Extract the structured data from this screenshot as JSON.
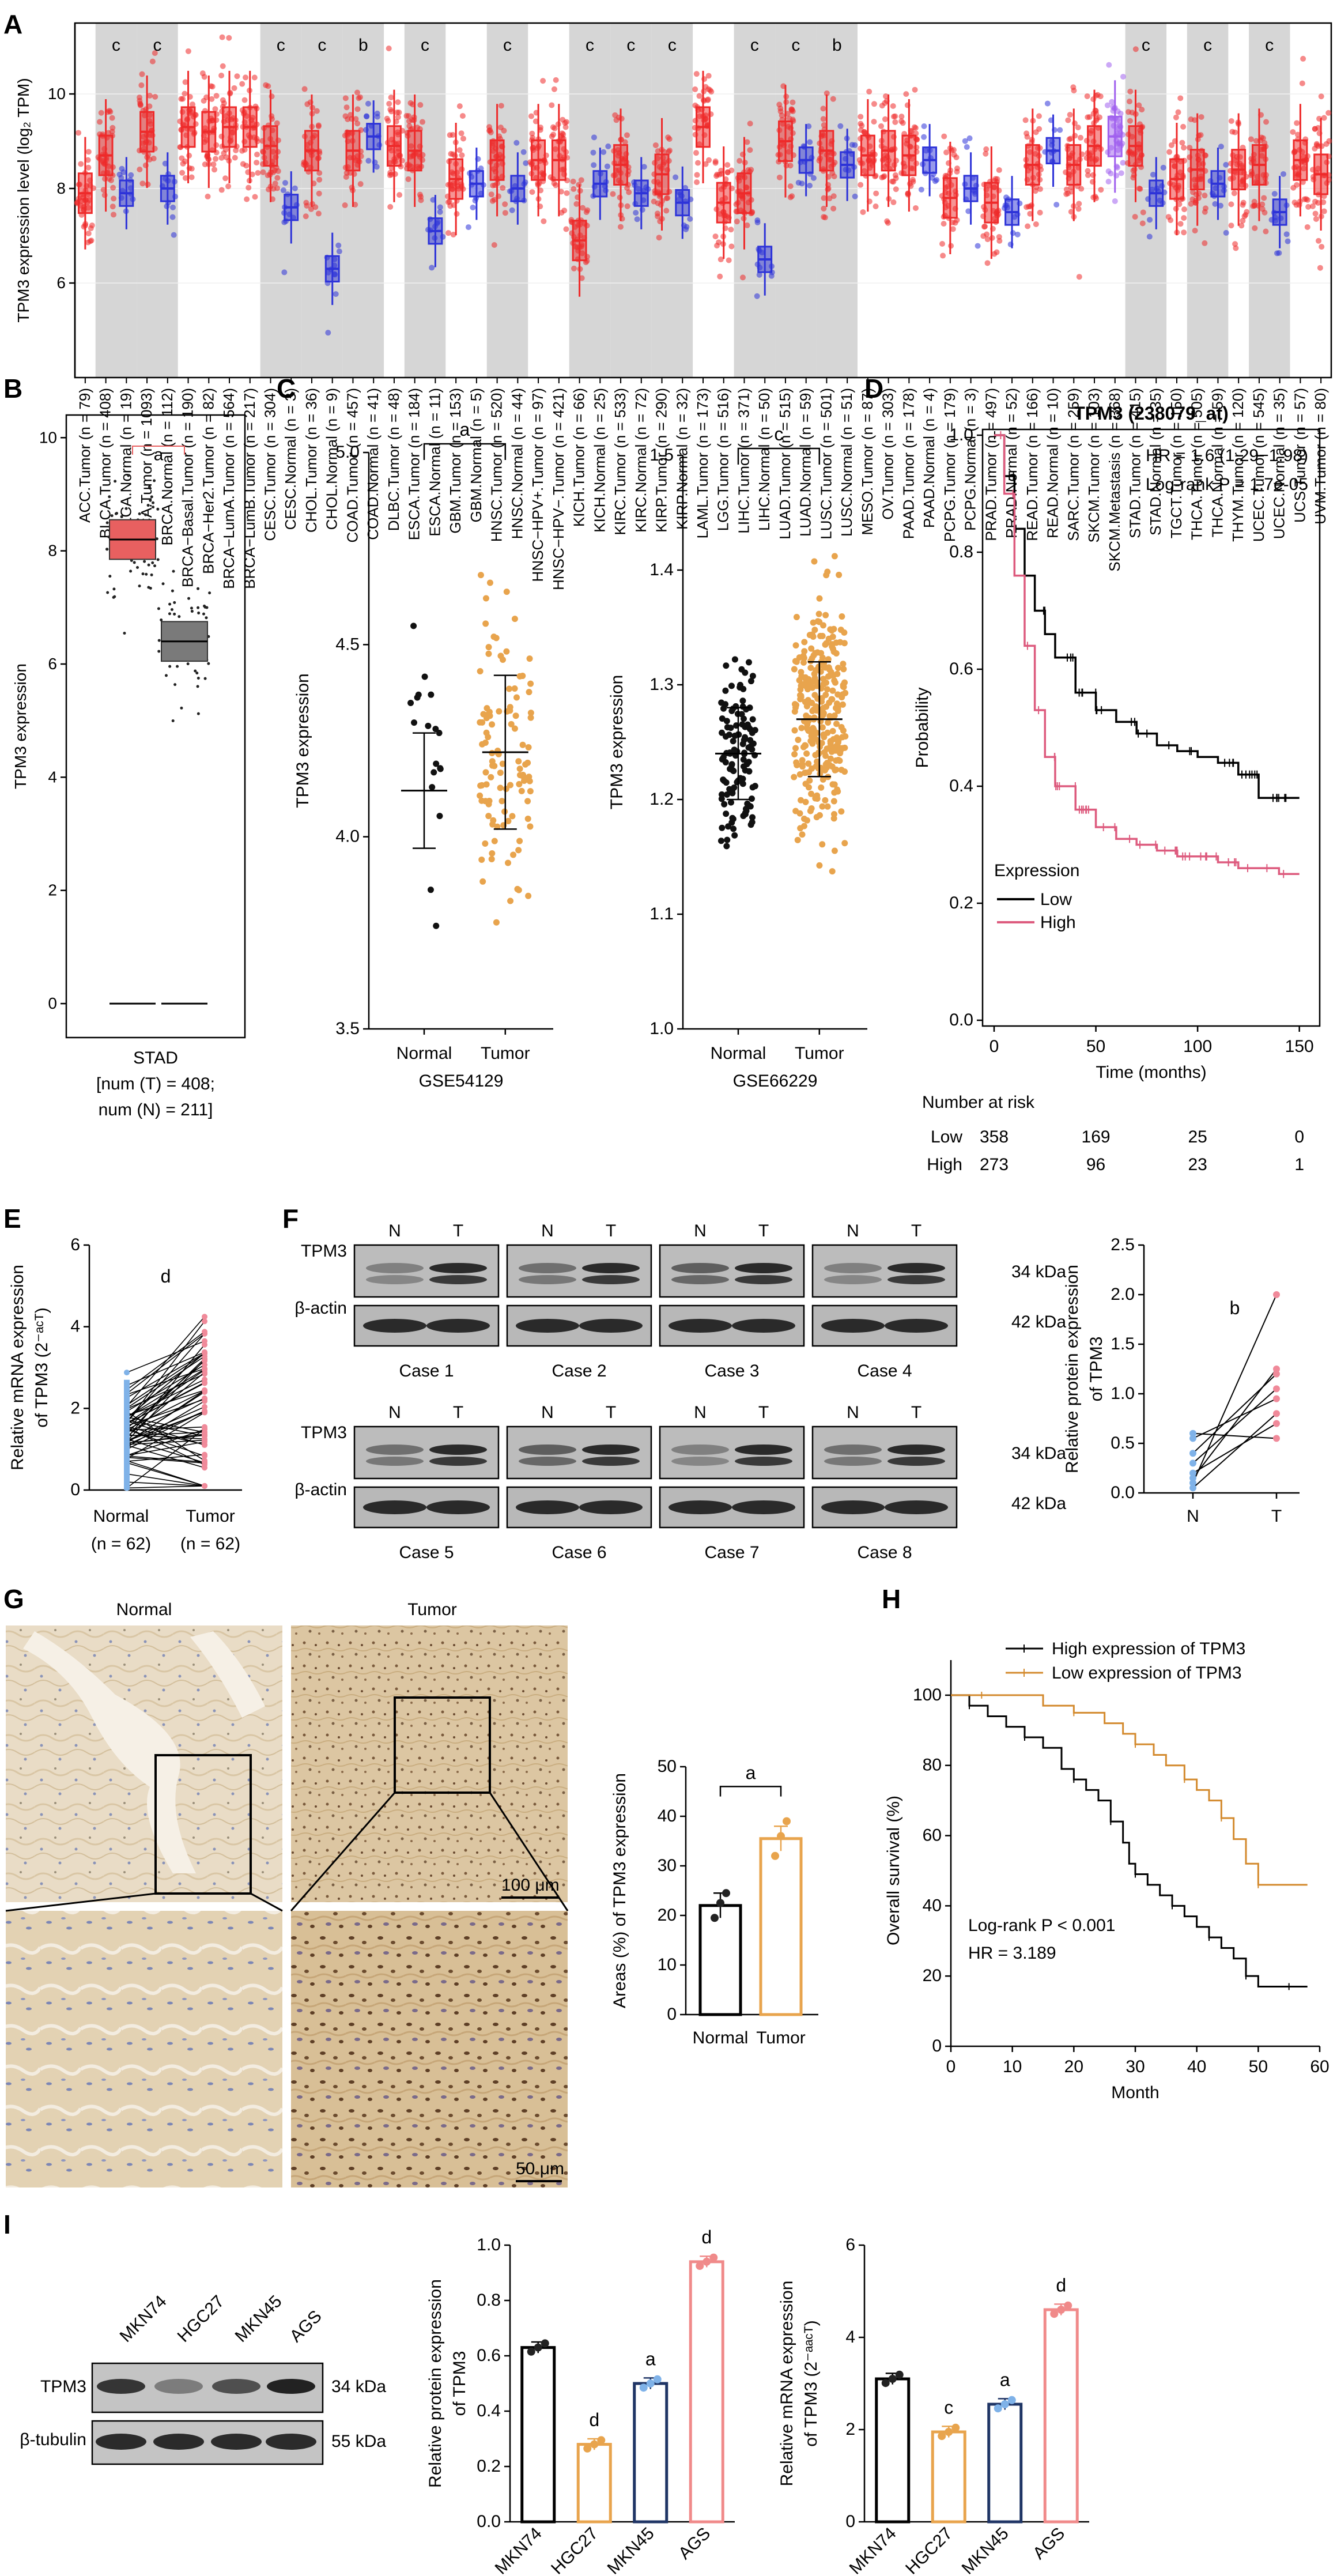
{
  "colors": {
    "tumor": "#ee2a2a",
    "normal": "#2d33d8",
    "metastasis": "#a060ee",
    "orange": "#e8a44d",
    "pink": "#dd5b7e",
    "lightblue": "#7fb2e8",
    "navy": "#233a6b",
    "gray": "#d6d6d6"
  },
  "chart_data": [
    {
      "panel": "A",
      "type": "box",
      "ylabel": "TPM3 expression level (log₂ TPM)",
      "yticks": [
        6,
        8,
        10
      ],
      "categories": [
        "ACC.Tumor (n = 79)",
        "BLCA.Tumor (n = 408)",
        "BLCA.Normal (n = 19)",
        "BRCA.Tumor (n = 1093)",
        "BRCA.Normal (n = 112)",
        "BRCA−Basal.Tumor (n = 190)",
        "BRCA−Her2.Tumor (n = 82)",
        "BRCA−LumA.Tumor (n = 564)",
        "BRCA−LumB.Tumor (n = 217)",
        "CESC.Tumor (n = 304)",
        "CESC.Normal (n = 3)",
        "CHOL.Tumor (n = 36)",
        "CHOL.Normal (n = 9)",
        "COAD.Tumor (n = 457)",
        "COAD.Normal (n = 41)",
        "DLBC.Tumor (n = 48)",
        "ESCA.Tumor (n = 184)",
        "ESCA.Normal (n = 11)",
        "GBM.Tumor (n = 153)",
        "GBM.Normal (n = 5)",
        "HNSC.Tumor (n = 520)",
        "HNSC.Normal (n = 44)",
        "HNSC−HPV+.Tumor (n = 97)",
        "HNSC−HPV−.Tumor (n = 421)",
        "KICH.Tumor (n = 66)",
        "KICH.Normal (n = 25)",
        "KIRC.Tumor (n = 533)",
        "KIRC.Normal (n = 72)",
        "KIRP.Tumor (n = 290)",
        "KIRP.Normal (n = 32)",
        "LAML.Tumor (n = 173)",
        "LGG.Tumor (n = 516)",
        "LIHC.Tumor (n = 371)",
        "LIHC.Normal (n = 50)",
        "LUAD.Tumor (n = 515)",
        "LUAD.Normal (n = 59)",
        "LUSC.Tumor (n = 501)",
        "LUSC.Normal (n = 51)",
        "MESO.Tumor (n = 87)",
        "OV.Tumor (n = 303)",
        "PAAD.Tumor (n = 178)",
        "PAAD.Normal (n = 4)",
        "PCPG.Tumor (n = 179)",
        "PCPG.Normal (n = 3)",
        "PRAD.Tumor (n = 497)",
        "PRAD.Normal (n = 52)",
        "READ.Tumor (n = 166)",
        "READ.Normal (n = 10)",
        "SARC.Tumor (n = 259)",
        "SKCM.Tumor (n = 103)",
        "SKCM.Metastasis (n = 368)",
        "STAD.Tumor (n = 415)",
        "STAD.Normal (n = 35)",
        "TGCT.Tumor (n = 150)",
        "THCA.Tumor (n = 505)",
        "THCA.Normal (n = 59)",
        "THYM.Tumor (n = 120)",
        "UCEC.Tumor (n = 545)",
        "UCEC.Normal (n = 35)",
        "UCS.Tumor (n = 57)",
        "UVM.Tumor (n = 80)"
      ],
      "medians": [
        7.9,
        8.7,
        7.9,
        9.2,
        8.0,
        9.3,
        9.2,
        9.3,
        9.3,
        8.9,
        7.6,
        8.8,
        6.3,
        8.8,
        9.1,
        8.9,
        8.8,
        7.1,
        8.2,
        8.1,
        8.6,
        8.0,
        8.6,
        8.6,
        6.9,
        8.1,
        8.5,
        7.9,
        8.3,
        7.7,
        9.3,
        7.7,
        7.9,
        6.5,
        9.0,
        8.6,
        8.8,
        8.5,
        8.7,
        8.8,
        8.7,
        8.6,
        7.8,
        8.0,
        7.7,
        7.5,
        8.5,
        8.8,
        8.5,
        8.9,
        9.1,
        8.9,
        7.9,
        8.2,
        8.4,
        8.1,
        8.4,
        8.5,
        7.5,
        8.6,
        8.3
      ],
      "kind": [
        "T",
        "T",
        "N",
        "T",
        "N",
        "T",
        "T",
        "T",
        "T",
        "T",
        "N",
        "T",
        "N",
        "T",
        "N",
        "T",
        "T",
        "N",
        "T",
        "N",
        "T",
        "N",
        "T",
        "T",
        "T",
        "N",
        "T",
        "N",
        "T",
        "N",
        "T",
        "T",
        "T",
        "N",
        "T",
        "N",
        "T",
        "N",
        "T",
        "T",
        "T",
        "N",
        "T",
        "N",
        "T",
        "N",
        "T",
        "N",
        "T",
        "T",
        "M",
        "T",
        "N",
        "T",
        "T",
        "N",
        "T",
        "T",
        "N",
        "T",
        "T"
      ],
      "significance": [
        {
          "pair": [
            1,
            2
          ],
          "label": "c"
        },
        {
          "pair": [
            3,
            4
          ],
          "label": "c"
        },
        {
          "pair": [
            9,
            10
          ],
          "label": "c"
        },
        {
          "pair": [
            11,
            12
          ],
          "label": "c"
        },
        {
          "pair": [
            13,
            14
          ],
          "label": "b"
        },
        {
          "pair": [
            16,
            17
          ],
          "label": "c"
        },
        {
          "pair": [
            20,
            21
          ],
          "label": "c"
        },
        {
          "pair": [
            24,
            25
          ],
          "label": "c"
        },
        {
          "pair": [
            26,
            27
          ],
          "label": "c"
        },
        {
          "pair": [
            28,
            29
          ],
          "label": "c"
        },
        {
          "pair": [
            32,
            33
          ],
          "label": "c"
        },
        {
          "pair": [
            34,
            35
          ],
          "label": "c"
        },
        {
          "pair": [
            36,
            37
          ],
          "label": "b"
        },
        {
          "pair": [
            51,
            52
          ],
          "label": "c"
        },
        {
          "pair": [
            54,
            55
          ],
          "label": "c"
        },
        {
          "pair": [
            57,
            58
          ],
          "label": "c"
        }
      ]
    },
    {
      "panel": "B",
      "type": "box",
      "ylabel": "TPM3 expression",
      "yticks": [
        0,
        2,
        4,
        6,
        8,
        10
      ],
      "groups": [
        {
          "kind": "tumor",
          "median": 8.2
        },
        {
          "kind": "normal",
          "median": 6.4
        }
      ],
      "sig": "a",
      "xlabel": "STAD",
      "note": [
        "[num (T) = 408;",
        "num (N) = 211]"
      ]
    },
    {
      "panel": "C1",
      "type": "scatter",
      "ylabel": "TPM3 expression",
      "yticks": [
        3.5,
        4.0,
        4.5,
        5.0
      ],
      "categories": [
        "Normal",
        "Tumor"
      ],
      "means": [
        4.12,
        4.22
      ],
      "sd": [
        0.15,
        0.2
      ],
      "xlabel": "GSE54129",
      "sig": "a"
    },
    {
      "panel": "C2",
      "type": "scatter",
      "ylabel": "TPM3 expression",
      "yticks": [
        1.0,
        1.1,
        1.2,
        1.3,
        1.4,
        1.5
      ],
      "categories": [
        "Normal",
        "Tumor"
      ],
      "means": [
        1.24,
        1.27
      ],
      "sd": [
        0.04,
        0.05
      ],
      "xlabel": "GSE66229",
      "sig": "c"
    },
    {
      "panel": "D",
      "type": "line",
      "title": "TPM3 (238079_at)",
      "ylabel": "Probability",
      "xlabel": "Time (months)",
      "xticks": [
        0,
        50,
        100,
        150
      ],
      "yticks": [
        0.0,
        0.2,
        0.4,
        0.6,
        0.8,
        1.0
      ],
      "hr": "HR = 1.6 (1.29−1.98)",
      "logrank": "Log-rank P = 1.7e-05",
      "legend_title": "Expression",
      "series": [
        {
          "name": "Low",
          "x": [
            0,
            5,
            10,
            15,
            20,
            25,
            30,
            40,
            50,
            60,
            70,
            80,
            90,
            100,
            110,
            120,
            125,
            130,
            140,
            150
          ],
          "y": [
            1.0,
            0.93,
            0.84,
            0.76,
            0.7,
            0.66,
            0.62,
            0.56,
            0.53,
            0.51,
            0.49,
            0.47,
            0.46,
            0.45,
            0.44,
            0.42,
            0.42,
            0.38,
            0.38,
            0.38
          ]
        },
        {
          "name": "High",
          "x": [
            0,
            5,
            10,
            15,
            20,
            25,
            30,
            40,
            50,
            60,
            70,
            80,
            90,
            100,
            110,
            120,
            130,
            140,
            150
          ],
          "y": [
            1.0,
            0.9,
            0.76,
            0.64,
            0.53,
            0.45,
            0.4,
            0.36,
            0.33,
            0.31,
            0.3,
            0.29,
            0.28,
            0.28,
            0.27,
            0.26,
            0.26,
            0.25,
            0.25
          ]
        }
      ],
      "risk_title": "Number at risk",
      "risk": [
        {
          "name": "Low",
          "values": [
            358,
            169,
            25,
            0
          ]
        },
        {
          "name": "High",
          "values": [
            273,
            96,
            23,
            1
          ]
        }
      ]
    },
    {
      "panel": "E",
      "type": "paired",
      "ylabel": [
        "Relative mRNA expression",
        "of TPM3 (2⁻ᵃᶜᵀ)"
      ],
      "yticks": [
        0,
        2,
        4,
        6
      ],
      "categories": [
        "Normal",
        "Tumor"
      ],
      "n_labels": [
        "(n = 62)",
        "(n = 62)"
      ],
      "sig": "d"
    },
    {
      "panel": "F2",
      "type": "paired",
      "ylabel": [
        "Relative protein expression",
        "of TPM3"
      ],
      "yticks": [
        0.0,
        0.5,
        1.0,
        1.5,
        2.0,
        2.5
      ],
      "categories": [
        "N",
        "T"
      ],
      "sig": "b",
      "pairs": [
        [
          0.1,
          2.0
        ],
        [
          0.15,
          1.25
        ],
        [
          0.4,
          1.2
        ],
        [
          0.3,
          1.05
        ],
        [
          0.55,
          0.95
        ],
        [
          0.05,
          0.8
        ],
        [
          0.2,
          0.7
        ],
        [
          0.6,
          0.55
        ]
      ]
    },
    {
      "panel": "G2",
      "type": "bar",
      "ylabel": "Areas (%) of TPM3 expression",
      "yticks": [
        0,
        10,
        20,
        30,
        40,
        50
      ],
      "categories": [
        "Normal",
        "Tumor"
      ],
      "values": [
        22,
        35.5
      ],
      "points": [
        [
          19.5,
          22.5,
          24.5
        ],
        [
          32,
          36,
          39
        ]
      ],
      "sig": "a"
    },
    {
      "panel": "H",
      "type": "line",
      "ylabel": "Overall survival (%)",
      "xlabel": "Month",
      "xticks": [
        0,
        10,
        20,
        30,
        40,
        50,
        60
      ],
      "yticks": [
        0,
        20,
        40,
        60,
        80,
        100
      ],
      "legend": [
        "High expression of TPM3",
        "Low expression of TPM3"
      ],
      "logrank": "Log-rank P < 0.001",
      "hr": "HR = 3.189",
      "series": [
        {
          "name": "High expression of TPM3",
          "x": [
            0,
            3,
            6,
            9,
            12,
            15,
            18,
            20,
            22,
            24,
            26,
            28,
            29,
            30,
            32,
            34,
            36,
            38,
            40,
            42,
            44,
            46,
            48,
            50,
            52,
            55,
            58
          ],
          "y": [
            100,
            97,
            94,
            91,
            88,
            85,
            79,
            76,
            73,
            70,
            64,
            58,
            52,
            49,
            46,
            43,
            40,
            37,
            34,
            31,
            28,
            25,
            20,
            17,
            17,
            17,
            17
          ]
        },
        {
          "name": "Low expression of TPM3",
          "x": [
            0,
            5,
            10,
            15,
            20,
            25,
            28,
            30,
            33,
            35,
            38,
            40,
            42,
            44,
            46,
            48,
            50,
            55,
            58
          ],
          "y": [
            100,
            100,
            100,
            97,
            95,
            92,
            89,
            86,
            83,
            80,
            76,
            73,
            70,
            65,
            59,
            52,
            46,
            46,
            46
          ]
        }
      ]
    },
    {
      "panel": "I2",
      "type": "bar",
      "ylabel": [
        "Relative protein expression",
        "of TPM3"
      ],
      "yticks": [
        0.0,
        0.2,
        0.4,
        0.6,
        0.8,
        1.0
      ],
      "categories": [
        "MKN74",
        "HGC27",
        "MKN45",
        "AGS"
      ],
      "values": [
        0.63,
        0.28,
        0.5,
        0.94
      ],
      "sig": [
        "",
        "d",
        "a",
        "d"
      ]
    },
    {
      "panel": "I3",
      "type": "bar",
      "ylabel": [
        "Relative mRNA expression",
        "of TPM3 (2⁻ᵃᵃᶜᵀ)"
      ],
      "yticks": [
        0,
        2,
        4,
        6
      ],
      "categories": [
        "MKN74",
        "HGC27",
        "MKN45",
        "AGS"
      ],
      "values": [
        3.1,
        1.95,
        2.55,
        4.6
      ],
      "sig": [
        "",
        "c",
        "a",
        "d"
      ]
    }
  ],
  "panel_labels": [
    "A",
    "B",
    "C",
    "D",
    "E",
    "F",
    "G",
    "H",
    "I"
  ],
  "blots_F": {
    "lane_labels": [
      "N",
      "T"
    ],
    "protein_labels": [
      "TPM3",
      "β-actin"
    ],
    "sizes": [
      "34 kDa",
      "42 kDa"
    ],
    "cases": [
      "Case 1",
      "Case 2",
      "Case 3",
      "Case 4",
      "Case 5",
      "Case 6",
      "Case 7",
      "Case 8"
    ]
  },
  "blots_I": {
    "lanes": [
      "MKN74",
      "HGC27",
      "MKN45",
      "AGS"
    ],
    "protein_labels": [
      "TPM3",
      "β-tubulin"
    ],
    "sizes": [
      "34 kDa",
      "55 kDa"
    ]
  },
  "histology_G": {
    "titles": [
      "Normal",
      "Tumor"
    ],
    "scale_top": "100 μm",
    "scale_bottom": "50 μm"
  }
}
